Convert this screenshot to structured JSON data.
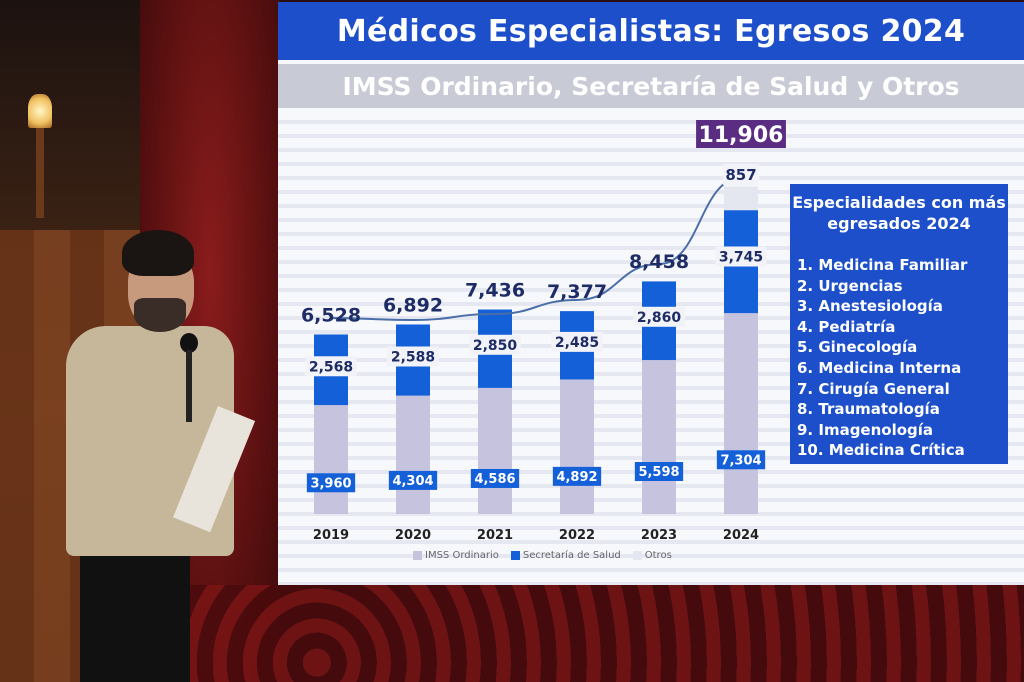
{
  "title": "Médicos Especialistas: Egresos 2024",
  "subtitle": "IMSS Ordinario, Secretaría de Salud y Otros",
  "colors": {
    "header_blue": "#1c4fc9",
    "imss": "#c5c3de",
    "salud": "#1460d8",
    "otros": "#e4e6f0",
    "total_badge": "#5a2d82"
  },
  "chart_data": {
    "type": "bar",
    "stacked": true,
    "categories": [
      "2019",
      "2020",
      "2021",
      "2022",
      "2023",
      "2024"
    ],
    "series": [
      {
        "name": "IMSS Ordinario",
        "values": [
          3960,
          4304,
          4586,
          4892,
          5598,
          7304
        ],
        "labels": [
          "3,960",
          "4,304",
          "4,586",
          "4,892",
          "5,598",
          "7,304"
        ]
      },
      {
        "name": "Secretaría de Salud",
        "values": [
          2568,
          2588,
          2850,
          2485,
          2860,
          3745
        ],
        "labels": [
          "2,568",
          "2,588",
          "2,850",
          "2,485",
          "2,860",
          "3,745"
        ]
      },
      {
        "name": "Otros",
        "values": [
          0,
          0,
          0,
          0,
          0,
          857
        ],
        "labels": [
          "",
          "",
          "",
          "",
          "",
          "857"
        ]
      }
    ],
    "totals": [
      6528,
      6892,
      7436,
      7377,
      8458,
      11906
    ],
    "total_labels": [
      "6,528",
      "6,892",
      "7,436",
      "7,377",
      "8,458",
      "11,906"
    ],
    "trend_line": true,
    "grid": false,
    "legend": "bottom"
  },
  "legend_panel": {
    "title": "Especialidades con más egresados 2024",
    "items": [
      "1.  Medicina Familiar",
      "2.  Urgencias",
      "3.  Anestesiología",
      "4.  Pediatría",
      "5.  Ginecología",
      "6.  Medicina Interna",
      "7.  Cirugía General",
      "8.  Traumatología",
      "9.  Imagenología",
      "10. Medicina Crítica"
    ]
  }
}
